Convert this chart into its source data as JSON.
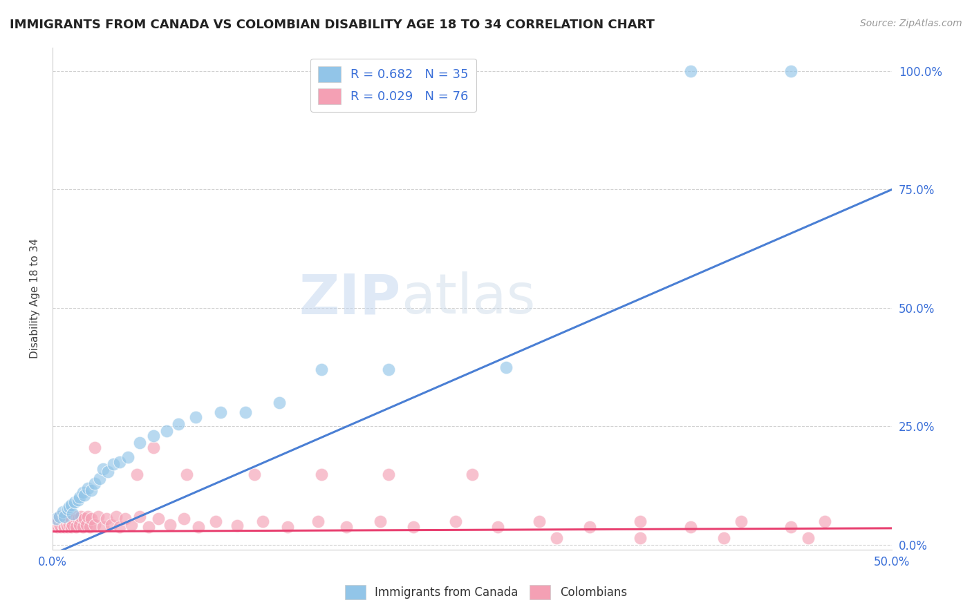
{
  "title": "IMMIGRANTS FROM CANADA VS COLOMBIAN DISABILITY AGE 18 TO 34 CORRELATION CHART",
  "source": "Source: ZipAtlas.com",
  "ylabel": "Disability Age 18 to 34",
  "xlim": [
    0.0,
    0.5
  ],
  "ylim": [
    -0.01,
    1.05
  ],
  "ytick_labels_right": [
    "100.0%",
    "75.0%",
    "50.0%",
    "25.0%",
    "0.0%"
  ],
  "ytick_vals_right": [
    1.0,
    0.75,
    0.5,
    0.25,
    0.0
  ],
  "watermark_zip": "ZIP",
  "watermark_atlas": "atlas",
  "series1_color": "#92c5e8",
  "series2_color": "#f4a0b4",
  "line1_color": "#4a7fd4",
  "line2_color": "#e84070",
  "legend1_label": "R = 0.682   N = 35",
  "legend2_label": "R = 0.029   N = 76",
  "bottom_legend1": "Immigrants from Canada",
  "bottom_legend2": "Colombians",
  "background_color": "#ffffff",
  "grid_color": "#cccccc",
  "blue_line_x": [
    0.0,
    0.5
  ],
  "blue_line_y": [
    -0.02,
    0.75
  ],
  "pink_line_x": [
    0.0,
    0.5
  ],
  "pink_line_y": [
    0.028,
    0.035
  ],
  "canada_x": [
    0.002,
    0.004,
    0.006,
    0.007,
    0.009,
    0.01,
    0.011,
    0.012,
    0.013,
    0.015,
    0.016,
    0.018,
    0.019,
    0.021,
    0.023,
    0.025,
    0.028,
    0.03,
    0.033,
    0.036,
    0.04,
    0.045,
    0.052,
    0.06,
    0.068,
    0.075,
    0.085,
    0.1,
    0.115,
    0.135,
    0.16,
    0.2,
    0.27,
    0.38,
    0.44
  ],
  "canada_y": [
    0.055,
    0.06,
    0.07,
    0.06,
    0.075,
    0.08,
    0.085,
    0.065,
    0.09,
    0.095,
    0.1,
    0.11,
    0.105,
    0.12,
    0.115,
    0.13,
    0.14,
    0.16,
    0.155,
    0.17,
    0.175,
    0.185,
    0.215,
    0.23,
    0.24,
    0.255,
    0.27,
    0.28,
    0.28,
    0.3,
    0.37,
    0.37,
    0.375,
    1.0,
    1.0
  ],
  "colombia_x": [
    0.001,
    0.002,
    0.003,
    0.003,
    0.004,
    0.004,
    0.005,
    0.005,
    0.006,
    0.006,
    0.007,
    0.007,
    0.008,
    0.008,
    0.009,
    0.009,
    0.01,
    0.01,
    0.011,
    0.011,
    0.012,
    0.013,
    0.014,
    0.015,
    0.016,
    0.017,
    0.018,
    0.019,
    0.02,
    0.021,
    0.022,
    0.023,
    0.025,
    0.027,
    0.03,
    0.032,
    0.035,
    0.038,
    0.04,
    0.043,
    0.047,
    0.052,
    0.057,
    0.063,
    0.07,
    0.078,
    0.087,
    0.097,
    0.11,
    0.125,
    0.14,
    0.158,
    0.175,
    0.195,
    0.215,
    0.24,
    0.265,
    0.29,
    0.32,
    0.35,
    0.38,
    0.41,
    0.44,
    0.46,
    0.05,
    0.08,
    0.12,
    0.16,
    0.2,
    0.25,
    0.3,
    0.35,
    0.4,
    0.45,
    0.025,
    0.06
  ],
  "colombia_y": [
    0.04,
    0.045,
    0.038,
    0.055,
    0.042,
    0.06,
    0.038,
    0.055,
    0.042,
    0.06,
    0.038,
    0.055,
    0.042,
    0.06,
    0.038,
    0.055,
    0.042,
    0.06,
    0.038,
    0.055,
    0.042,
    0.06,
    0.038,
    0.055,
    0.042,
    0.06,
    0.038,
    0.055,
    0.042,
    0.06,
    0.038,
    0.055,
    0.042,
    0.06,
    0.038,
    0.055,
    0.042,
    0.06,
    0.038,
    0.055,
    0.042,
    0.06,
    0.038,
    0.055,
    0.042,
    0.055,
    0.038,
    0.05,
    0.04,
    0.05,
    0.038,
    0.05,
    0.038,
    0.05,
    0.038,
    0.05,
    0.038,
    0.05,
    0.038,
    0.05,
    0.038,
    0.05,
    0.038,
    0.05,
    0.148,
    0.148,
    0.148,
    0.148,
    0.148,
    0.148,
    0.015,
    0.015,
    0.015,
    0.015,
    0.205,
    0.205
  ]
}
